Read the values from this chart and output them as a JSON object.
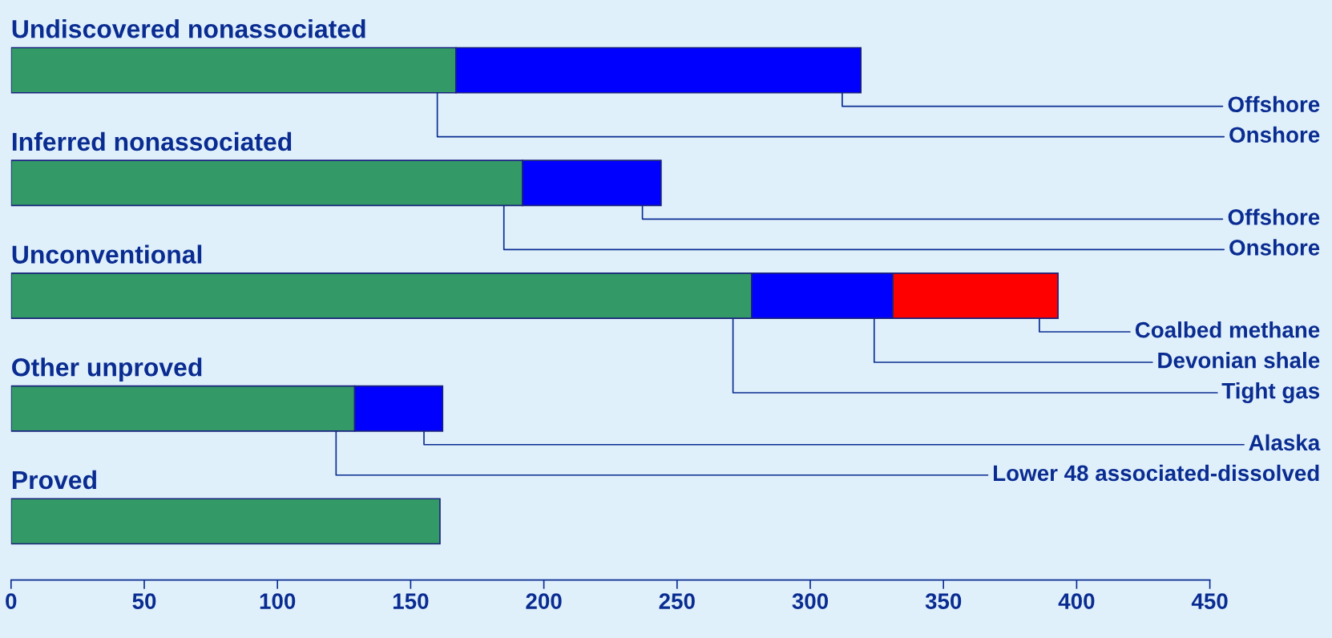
{
  "chart_data": {
    "type": "bar",
    "orientation": "horizontal",
    "stacked": true,
    "categories": [
      "Undiscovered nonassociated",
      "Inferred nonassociated",
      "Unconventional",
      "Other unproved",
      "Proved"
    ],
    "series": [
      {
        "color": "#339966",
        "values": [
          167,
          192,
          278,
          129,
          161
        ],
        "value_labels": [
          "Onshore",
          "Onshore",
          "Tight gas",
          "Lower 48 associated-dissolved",
          null
        ]
      },
      {
        "color": "#0000ff",
        "values": [
          152,
          52,
          53,
          33,
          null
        ],
        "value_labels": [
          "Offshore",
          "Offshore",
          "Devonian shale",
          "Alaska",
          null
        ]
      },
      {
        "color": "#ff0000",
        "values": [
          null,
          null,
          62,
          null,
          null
        ],
        "value_labels": [
          null,
          null,
          "Coalbed methane",
          null,
          null
        ]
      }
    ],
    "xlim": [
      0,
      450
    ],
    "xticks": [
      0,
      50,
      100,
      150,
      200,
      250,
      300,
      350,
      400,
      450
    ],
    "tick_labels": "x",
    "grid": false,
    "legend": false
  }
}
